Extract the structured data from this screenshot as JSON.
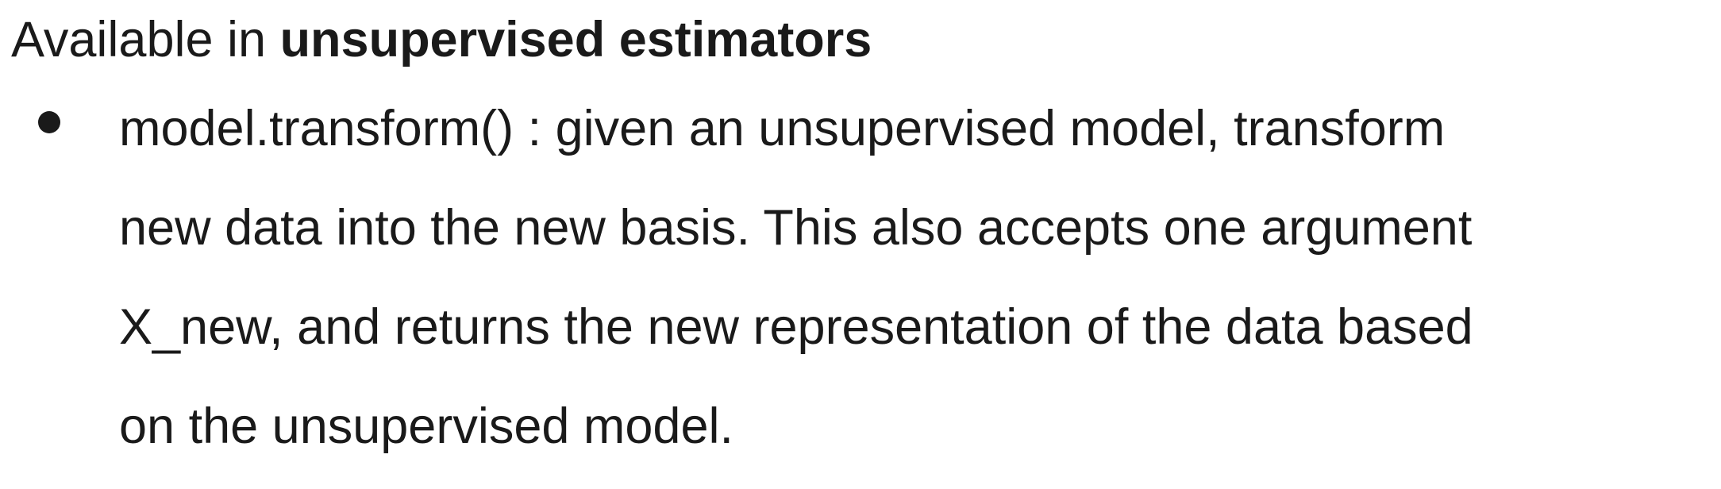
{
  "heading": {
    "prefix": "Available in ",
    "emphasis": "unsupervised estimators"
  },
  "bullets": [
    {
      "lines": [
        "model.transform() : given an unsupervised model, transform",
        "new data into the new basis. This also accepts one argument",
        "X_new, and returns the new representation of the data based",
        "on the unsupervised model."
      ]
    }
  ]
}
